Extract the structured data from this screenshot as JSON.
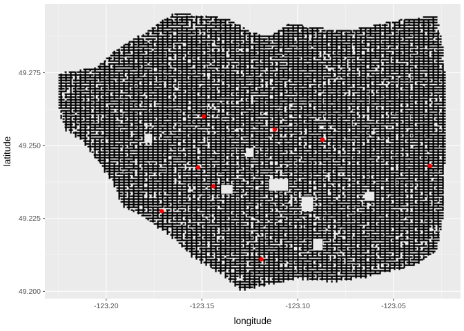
{
  "chart_data": {
    "type": "scatter",
    "title": "",
    "xlabel": "longitude",
    "ylabel": "latitude",
    "xlim": [
      -123.232,
      -123.015
    ],
    "ylim": [
      49.1975,
      49.2985
    ],
    "x_ticks": [
      -123.2,
      -123.15,
      -123.1,
      -123.05
    ],
    "x_tick_labels": [
      "-123.20",
      "-123.15",
      "-123.10",
      "-123.05"
    ],
    "y_ticks": [
      49.2,
      49.225,
      49.25,
      49.275
    ],
    "y_tick_labels": [
      "49.200",
      "49.225",
      "49.250",
      "49.275"
    ],
    "grid": true,
    "legend": "none",
    "colors": {
      "panel": "#ebebeb",
      "grid_major": "#ffffff",
      "street_points": "#000000",
      "highlight_points": "#ff0000"
    },
    "series": [
      {
        "role": "street-network",
        "description_hint": "dense black points forming the street grid",
        "extent_x": [
          -123.225,
          -123.025
        ],
        "extent_y": [
          49.2,
          49.295
        ]
      },
      {
        "role": "highlight",
        "points": [
          {
            "x": -123.149,
            "y": 49.26
          },
          {
            "x": -123.112,
            "y": 49.2555
          },
          {
            "x": -123.087,
            "y": 49.252
          },
          {
            "x": -123.152,
            "y": 49.2425
          },
          {
            "x": -123.031,
            "y": 49.243
          },
          {
            "x": -123.144,
            "y": 49.236
          },
          {
            "x": -123.171,
            "y": 49.2275
          },
          {
            "x": -123.119,
            "y": 49.211
          }
        ]
      }
    ]
  }
}
